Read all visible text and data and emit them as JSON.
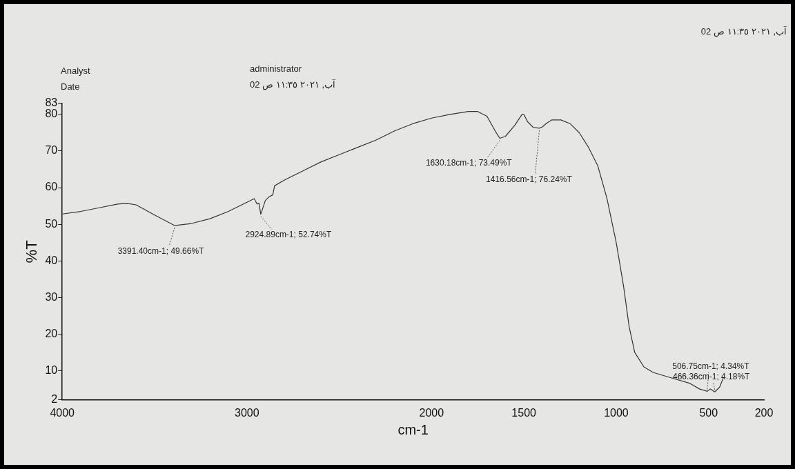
{
  "chart_data": {
    "type": "line",
    "xlabel": "cm-1",
    "ylabel": "%T",
    "annotations": [
      "Analyst",
      "Date",
      "administrator",
      "آب, ٢٠٢١ ١١:٣٥ ص 02",
      "آب, ٢٠٢١ ١١:٣٥ ص 02",
      {
        "text": "3391.40cm-1; 49.66%T",
        "x": 3391.4,
        "y": 49.66
      },
      {
        "text": "2924.89cm-1; 52.74%T",
        "x": 2924.89,
        "y": 52.74
      },
      {
        "text": "1630.18cm-1; 73.49%T",
        "x": 1630.18,
        "y": 73.49
      },
      {
        "text": "1416.56cm-1; 76.24%T",
        "x": 1416.56,
        "y": 76.24
      },
      {
        "text": "506.75cm-1; 4.34%T",
        "x": 506.75,
        "y": 4.34
      },
      {
        "text": "466.36cm-1; 4.18%T",
        "x": 466.36,
        "y": 4.18
      }
    ],
    "x": [
      4000,
      3900,
      3800,
      3700,
      3650,
      3600,
      3500,
      3391.4,
      3300,
      3200,
      3100,
      3000,
      2960,
      2945,
      2935,
      2924.89,
      2900,
      2880,
      2860,
      2850,
      2800,
      2700,
      2600,
      2500,
      2400,
      2300,
      2200,
      2100,
      2000,
      1900,
      1800,
      1750,
      1700,
      1650,
      1630.18,
      1600,
      1550,
      1510,
      1500,
      1480,
      1450,
      1416.56,
      1400,
      1380,
      1350,
      1300,
      1250,
      1200,
      1150,
      1100,
      1050,
      1000,
      960,
      930,
      900,
      850,
      800,
      700,
      600,
      550,
      506.75,
      490,
      466.36,
      440,
      420
    ],
    "series": [
      {
        "color": "#333333",
        "values": [
          52.8,
          53.5,
          54.5,
          55.5,
          55.7,
          55.3,
          52.5,
          49.66,
          50.2,
          51.5,
          53.5,
          56,
          57,
          55.5,
          55.8,
          52.74,
          56.5,
          57.5,
          58,
          60.5,
          62,
          64.5,
          67,
          69,
          71,
          73,
          75.5,
          77.5,
          79,
          80,
          80.8,
          80.8,
          79.5,
          75,
          73.49,
          74,
          77,
          80,
          80,
          78,
          76.5,
          76.24,
          76.6,
          77.5,
          78.5,
          78.5,
          77.5,
          75,
          71,
          66,
          57,
          45,
          33,
          22,
          15,
          11,
          9.5,
          8,
          6.5,
          5,
          4.34,
          5,
          4.18,
          5.5,
          8
        ]
      }
    ],
    "xlim": [
      4000,
      200
    ],
    "xticks": [
      4000,
      3000,
      2000,
      1500,
      1000,
      500,
      200
    ],
    "ylim": [
      2,
      83
    ],
    "yticks": [
      2,
      10,
      20,
      30,
      40,
      50,
      60,
      70,
      80,
      83
    ],
    "legend": false,
    "marker": "none",
    "line_style": "solid"
  }
}
